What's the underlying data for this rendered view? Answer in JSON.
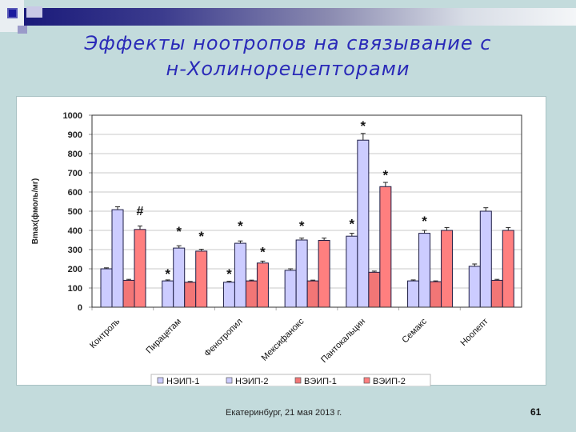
{
  "slide": {
    "title_line1": "Эффекты ноотропов на связывание с",
    "title_line2": "н-Холинорецепторами",
    "footer": "Екатеринбург, 21 мая 2013 г.",
    "page_number": "61"
  },
  "colors": {
    "background": "#c3dbdc",
    "title": "#2a2ab8",
    "nep1": "#ccccff",
    "nep2": "#ccccff",
    "vep1": "#f27676",
    "vep2": "#ff7f7f",
    "bar_border": "#1e1e46"
  },
  "chart_data": {
    "type": "bar",
    "title": "",
    "xlabel": "",
    "ylabel": "Bmax(фмоль/мг)",
    "ylim": [
      0,
      1000
    ],
    "yticks": [
      0,
      100,
      200,
      300,
      400,
      500,
      600,
      700,
      800,
      900,
      1000
    ],
    "grid": true,
    "legend_position": "bottom",
    "categories": [
      "Контроль",
      "Пирацетам",
      "Фенотропил",
      "Мексифанокс",
      "Пантокальцин",
      "Семакс",
      "Ноопепт"
    ],
    "series": [
      {
        "name": "НЭИП-1",
        "color": "#ccccff",
        "values": [
          200,
          137,
          130,
          192,
          370,
          137,
          213
        ],
        "errors": [
          5,
          5,
          5,
          8,
          15,
          5,
          12
        ]
      },
      {
        "name": "НЭИП-2",
        "color": "#ccccff",
        "values": [
          508,
          308,
          333,
          350,
          870,
          385,
          500
        ],
        "errors": [
          15,
          12,
          12,
          10,
          35,
          15,
          18
        ]
      },
      {
        "name": "ВЭИП-1",
        "color": "#f27676",
        "values": [
          140,
          130,
          137,
          137,
          182,
          133,
          140
        ],
        "errors": [
          5,
          4,
          4,
          4,
          6,
          4,
          5
        ]
      },
      {
        "name": "ВЭИП-2",
        "color": "#ff7f7f",
        "values": [
          405,
          292,
          230,
          348,
          628,
          400,
          400
        ],
        "errors": [
          18,
          10,
          10,
          12,
          22,
          15,
          15
        ]
      }
    ],
    "annotations": [
      {
        "category": "Контроль",
        "series": "ВЭИП-2",
        "text": "#",
        "y": 505
      },
      {
        "category": "Пирацетам",
        "series": "НЭИП-1",
        "text": "*",
        "y": 175
      },
      {
        "category": "Пирацетам",
        "series": "НЭИП-2",
        "text": "*",
        "y": 395
      },
      {
        "category": "Пирацетам",
        "series": "ВЭИП-2",
        "text": "*",
        "y": 370
      },
      {
        "category": "Фенотропил",
        "series": "НЭИП-1",
        "text": "*",
        "y": 175
      },
      {
        "category": "Фенотропил",
        "series": "НЭИП-2",
        "text": "*",
        "y": 425
      },
      {
        "category": "Фенотропил",
        "series": "ВЭИП-2",
        "text": "*",
        "y": 290
      },
      {
        "category": "Мексифанокс",
        "series": "НЭИП-2",
        "text": "*",
        "y": 425
      },
      {
        "category": "Пантокальцин",
        "series": "НЭИП-1",
        "text": "*",
        "y": 435
      },
      {
        "category": "Пантокальцин",
        "series": "НЭИП-2",
        "text": "*",
        "y": 945
      },
      {
        "category": "Пантокальцин",
        "series": "ВЭИП-2",
        "text": "*",
        "y": 690
      },
      {
        "category": "Семакс",
        "series": "НЭИП-2",
        "text": "*",
        "y": 450
      }
    ]
  }
}
